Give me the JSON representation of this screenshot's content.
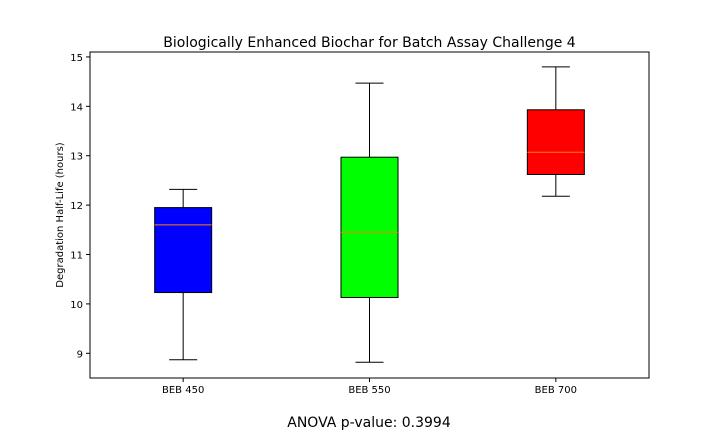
{
  "chart_data": {
    "type": "box",
    "title": "Biologically Enhanced Biochar for Batch Assay Challenge 4",
    "xlabel": "",
    "ylabel": "Degradation Half-Life (hours)",
    "ylim": [
      8.5,
      15.1
    ],
    "yticks": [
      9,
      10,
      11,
      12,
      13,
      14,
      15
    ],
    "categories": [
      "BEB 450",
      "BEB 550",
      "BEB 700"
    ],
    "boxes": [
      {
        "label": "BEB 450",
        "whisker_low": 8.87,
        "q1": 10.23,
        "median": 11.6,
        "q3": 11.95,
        "whisker_high": 12.32,
        "color": "#0000ff"
      },
      {
        "label": "BEB 550",
        "whisker_low": 8.82,
        "q1": 10.13,
        "median": 11.45,
        "q3": 12.97,
        "whisker_high": 14.47,
        "color": "#00ff00"
      },
      {
        "label": "BEB 700",
        "whisker_low": 12.18,
        "q1": 12.62,
        "median": 13.07,
        "q3": 13.93,
        "whisker_high": 14.8,
        "color": "#ff0000"
      }
    ],
    "median_color": "#ff7f0e",
    "grid": false
  },
  "footer_text": "ANOVA p-value: 0.3994"
}
